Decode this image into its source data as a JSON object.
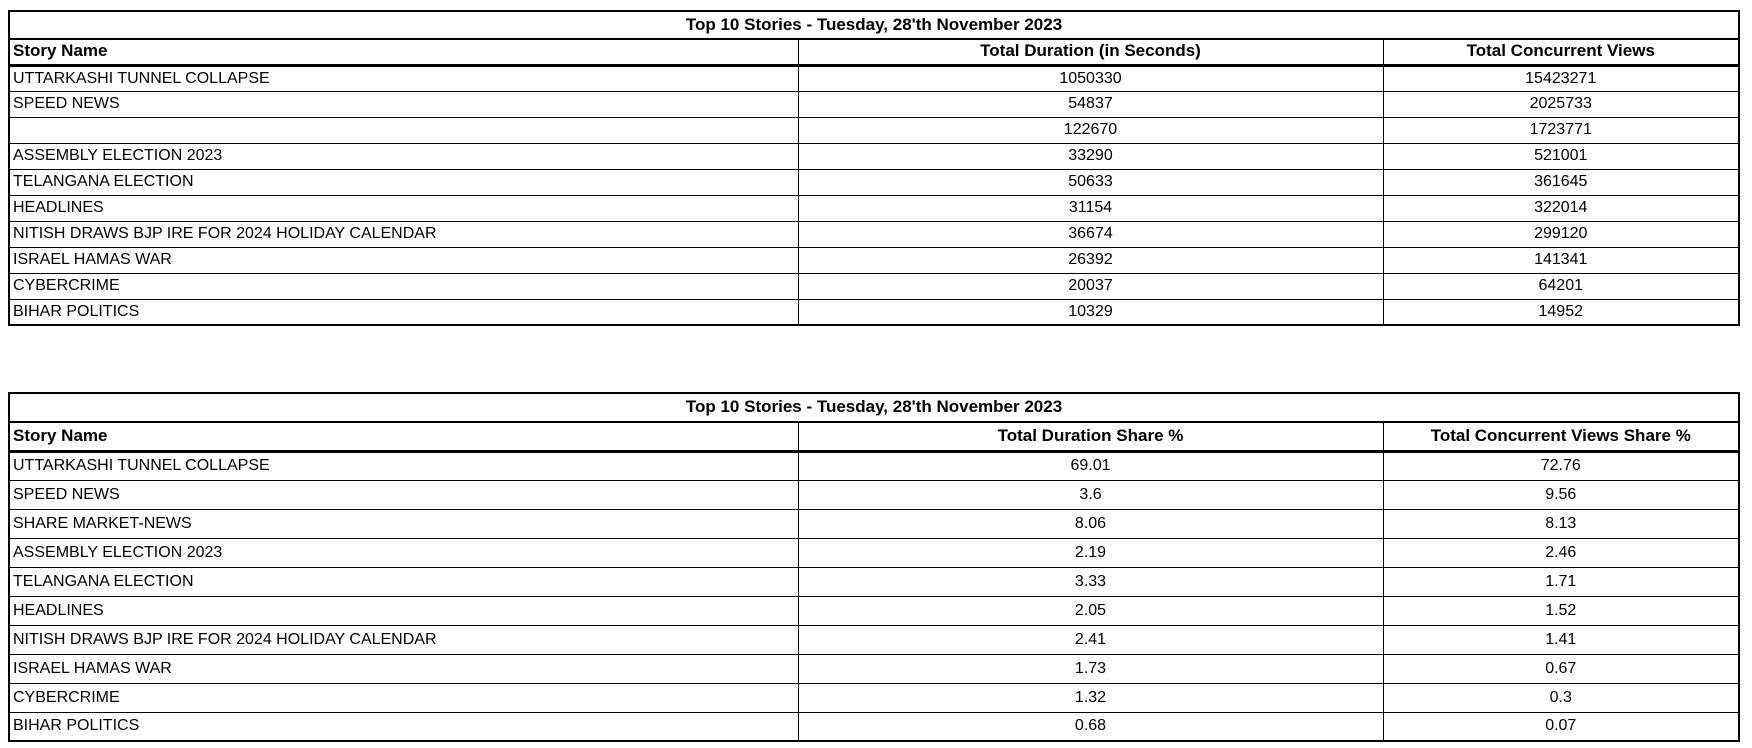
{
  "chart_data": [
    {
      "type": "table",
      "title": "Top 10 Stories - Tuesday, 28'th November 2023",
      "columns": [
        "Story Name",
        "Total Duration (in Seconds)",
        "Total Concurrent Views"
      ],
      "rows": [
        [
          "UTTARKASHI TUNNEL COLLAPSE",
          1050330,
          15423271
        ],
        [
          "SPEED NEWS",
          54837,
          2025733
        ],
        [
          "",
          122670,
          1723771
        ],
        [
          "ASSEMBLY ELECTION 2023",
          33290,
          521001
        ],
        [
          "TELANGANA ELECTION",
          50633,
          361645
        ],
        [
          "HEADLINES",
          31154,
          322014
        ],
        [
          "NITISH DRAWS BJP IRE FOR 2024 HOLIDAY CALENDAR",
          36674,
          299120
        ],
        [
          "ISRAEL HAMAS WAR",
          26392,
          141341
        ],
        [
          "CYBERCRIME",
          20037,
          64201
        ],
        [
          "BIHAR POLITICS",
          10329,
          14952
        ]
      ]
    },
    {
      "type": "table",
      "title": "Top 10 Stories - Tuesday, 28'th November 2023",
      "columns": [
        "Story Name",
        "Total Duration Share %",
        "Total Concurrent Views Share %"
      ],
      "rows": [
        [
          "UTTARKASHI TUNNEL COLLAPSE",
          "69.01",
          "72.76"
        ],
        [
          "SPEED NEWS",
          "3.6",
          "9.56"
        ],
        [
          "SHARE MARKET-NEWS",
          "8.06",
          "8.13"
        ],
        [
          "ASSEMBLY ELECTION 2023",
          "2.19",
          "2.46"
        ],
        [
          "TELANGANA ELECTION",
          "3.33",
          "1.71"
        ],
        [
          "HEADLINES",
          "2.05",
          "1.52"
        ],
        [
          "NITISH DRAWS BJP IRE FOR 2024 HOLIDAY CALENDAR",
          "2.41",
          "1.41"
        ],
        [
          "ISRAEL HAMAS WAR",
          "1.73",
          "0.67"
        ],
        [
          "CYBERCRIME",
          "1.32",
          "0.3"
        ],
        [
          "BIHAR POLITICS",
          "0.68",
          "0.07"
        ]
      ]
    }
  ],
  "colors": {
    "border": "#000000",
    "text": "#000000",
    "background": "#ffffff"
  }
}
